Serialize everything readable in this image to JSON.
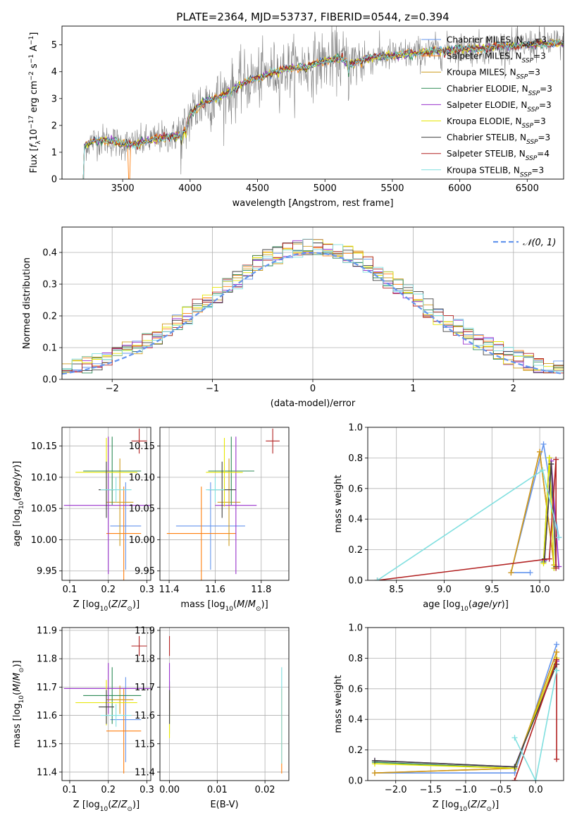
{
  "figure": {
    "title": "PLATE=2364, MJD=53737, FIBERID=0544, z=0.394"
  },
  "colors": {
    "chabrier_miles": "#6495ed",
    "salpeter_miles": "#ff7f0e",
    "kroupa_miles": "#cd9b1d",
    "chabrier_elodie": "#2e8b57",
    "salpeter_elodie": "#9932cc",
    "kroupa_elodie": "#e6e600",
    "chabrier_stelib": "#404040",
    "salpeter_stelib": "#b22222",
    "kroupa_stelib": "#7fdfdf",
    "normal_curve": "#6495ed"
  },
  "chart_data": [
    {
      "id": "spectrum",
      "type": "line",
      "xlabel": "wavelength [Angstrom, rest frame]",
      "ylabel": "Flux [f_λ10^-17 erg cm^-2 s^-1 A^-1]",
      "xlim": [
        3050,
        6770
      ],
      "ylim": [
        0,
        5.7
      ],
      "xticks": [
        "3500",
        "4000",
        "4500",
        "5000",
        "5500",
        "6000",
        "6500"
      ],
      "yticks": [
        "0",
        "1",
        "2",
        "3",
        "4",
        "5"
      ],
      "grid": false,
      "legend_position": "top-right",
      "legend": [
        {
          "label": "Chabrier MILES, N_SSP=3",
          "base": "Chabrier MILES, N",
          "sub": "SSP",
          "tail": "=3",
          "color": "#6495ed"
        },
        {
          "label": "Salpeter MILES, N_SSP=3",
          "base": "Salpeter MILES, N",
          "sub": "SSP",
          "tail": "=3",
          "color": "#ff7f0e"
        },
        {
          "label": "Kroupa MILES, N_SSP=3",
          "base": "Kroupa MILES, N",
          "sub": "SSP",
          "tail": "=3",
          "color": "#cd9b1d"
        },
        {
          "label": "Chabrier ELODIE, N_SSP=3",
          "base": "Chabrier ELODIE, N",
          "sub": "SSP",
          "tail": "=3",
          "color": "#2e8b57"
        },
        {
          "label": "Salpeter ELODIE, N_SSP=3",
          "base": "Salpeter ELODIE, N",
          "sub": "SSP",
          "tail": "=3",
          "color": "#9932cc"
        },
        {
          "label": "Kroupa ELODIE, N_SSP=3",
          "base": "Kroupa ELODIE, N",
          "sub": "SSP",
          "tail": "=3",
          "color": "#e6e600"
        },
        {
          "label": "Chabrier STELIB, N_SSP=3",
          "base": "Chabrier STELIB, N",
          "sub": "SSP",
          "tail": "=3",
          "color": "#404040"
        },
        {
          "label": "Salpeter STELIB, N_SSP=4",
          "base": "Salpeter STELIB, N",
          "sub": "SSP",
          "tail": "=4",
          "color": "#b22222"
        },
        {
          "label": "Kroupa STELIB, N_SSP=3",
          "base": "Kroupa STELIB, N",
          "sub": "SSP",
          "tail": "=3",
          "color": "#7fdfdf"
        }
      ],
      "continuum": {
        "x": [
          3200,
          3230,
          3300,
          3400,
          3500,
          3600,
          3700,
          3800,
          3900,
          3950,
          4000,
          4100,
          4200,
          4300,
          4400,
          4500,
          4600,
          4700,
          4800,
          4900,
          5000,
          5100,
          5200,
          5300,
          5400,
          5500,
          5600,
          5700,
          5800,
          5900,
          6000,
          6100,
          6200,
          6300,
          6400,
          6500,
          6600,
          6700
        ],
        "y": [
          1.1,
          1.3,
          1.45,
          1.45,
          1.3,
          1.3,
          1.45,
          1.55,
          1.6,
          1.7,
          2.4,
          2.9,
          3.0,
          3.3,
          3.6,
          3.75,
          3.95,
          4.1,
          4.15,
          4.25,
          4.4,
          4.5,
          4.3,
          4.5,
          4.55,
          4.6,
          4.65,
          4.7,
          4.75,
          4.8,
          4.85,
          4.85,
          4.9,
          4.95,
          4.95,
          5.0,
          5.05,
          5.05
        ]
      }
    },
    {
      "id": "residual_histogram",
      "type": "histogram",
      "xlabel": "(data-model)/error",
      "ylabel": "Normed distribution",
      "xlim": [
        -2.5,
        2.5
      ],
      "ylim": [
        0,
        0.48
      ],
      "xticks": [
        "−2",
        "−1",
        "0",
        "1",
        "2"
      ],
      "yticks": [
        "0.0",
        "0.1",
        "0.2",
        "0.3",
        "0.4"
      ],
      "grid": true,
      "bin_width": 0.1,
      "legend_position": "top-right",
      "reference_curve": {
        "label": "𝒩(0, 1)",
        "mean": 0,
        "sigma": 1
      }
    },
    {
      "id": "age_vs_Z",
      "type": "errorbar",
      "xlabel": "Z [log10(Z/Z⊙)]",
      "ylabel": "age [log10(age/yr)]",
      "xlim": [
        0.08,
        0.31
      ],
      "ylim": [
        9.935,
        10.18
      ],
      "xticks": [
        "0.1",
        "0.2",
        "0.3"
      ],
      "yticks": [
        "9.95",
        "10.00",
        "10.05",
        "10.10",
        "10.15"
      ],
      "grid": true,
      "points": [
        {
          "model": "Chabrier MILES",
          "x": 0.245,
          "xerr": 0.04,
          "y": 10.022,
          "yerr": 0.07
        },
        {
          "model": "Salpeter MILES",
          "x": 0.24,
          "xerr": 0.045,
          "y": 10.01,
          "yerr": 0.075
        },
        {
          "model": "Kroupa MILES",
          "x": 0.23,
          "xerr": 0.035,
          "y": 10.06,
          "yerr": 0.07
        },
        {
          "model": "Chabrier ELODIE",
          "x": 0.21,
          "xerr": 0.075,
          "y": 10.11,
          "yerr": 0.055
        },
        {
          "model": "Salpeter ELODIE",
          "x": 0.2,
          "xerr": 0.115,
          "y": 10.055,
          "yerr": 0.11
        },
        {
          "model": "Kroupa ELODIE",
          "x": 0.195,
          "xerr": 0.08,
          "y": 10.108,
          "yerr": 0.055
        },
        {
          "model": "Chabrier STELIB",
          "x": 0.195,
          "xerr": 0.02,
          "y": 10.08,
          "yerr": 0.045
        },
        {
          "model": "Salpeter STELIB",
          "x": 0.28,
          "xerr": 0.02,
          "y": 10.158,
          "yerr": 0.02
        },
        {
          "model": "Kroupa STELIB",
          "x": 0.22,
          "xerr": 0.04,
          "y": 10.08,
          "yerr": 0.02
        }
      ]
    },
    {
      "id": "age_vs_mass",
      "type": "errorbar",
      "xlabel": "mass [log10(M/M⊙)]",
      "ylabel": "",
      "xlim": [
        11.36,
        11.92
      ],
      "ylim": [
        9.935,
        10.18
      ],
      "xticks": [
        "11.4",
        "11.6",
        "11.8"
      ],
      "yticks": [
        "9.95",
        "10.00",
        "10.05",
        "10.10",
        "10.15"
      ],
      "grid": true,
      "points": [
        {
          "model": "Chabrier MILES",
          "x": 11.58,
          "xerr": 0.15,
          "y": 10.022,
          "yerr": 0.07
        },
        {
          "model": "Salpeter MILES",
          "x": 11.54,
          "xerr": 0.15,
          "y": 10.01,
          "yerr": 0.075
        },
        {
          "model": "Kroupa MILES",
          "x": 11.66,
          "xerr": 0.05,
          "y": 10.06,
          "yerr": 0.07
        },
        {
          "model": "Chabrier ELODIE",
          "x": 11.67,
          "xerr": 0.1,
          "y": 10.11,
          "yerr": 0.055
        },
        {
          "model": "Salpeter ELODIE",
          "x": 11.69,
          "xerr": 0.09,
          "y": 10.055,
          "yerr": 0.11
        },
        {
          "model": "Kroupa ELODIE",
          "x": 11.64,
          "xerr": 0.08,
          "y": 10.108,
          "yerr": 0.055
        },
        {
          "model": "Chabrier STELIB",
          "x": 11.63,
          "xerr": 0.06,
          "y": 10.08,
          "yerr": 0.045
        },
        {
          "model": "Salpeter STELIB",
          "x": 11.85,
          "xerr": 0.03,
          "y": 10.158,
          "yerr": 0.02
        },
        {
          "model": "Kroupa STELIB",
          "x": 11.6,
          "xerr": 0.04,
          "y": 10.08,
          "yerr": 0.02
        }
      ]
    },
    {
      "id": "mass_weight_vs_age",
      "type": "line",
      "xlabel": "age  [log10(age/yr)]",
      "ylabel": "mass weight",
      "xlim": [
        8.2,
        10.25
      ],
      "ylim": [
        0,
        1
      ],
      "xticks": [
        "8.5",
        "9.0",
        "9.5",
        "10.0"
      ],
      "yticks": [
        "0.0",
        "0.2",
        "0.4",
        "0.6",
        "0.8",
        "1.0"
      ],
      "grid": true,
      "series": [
        {
          "model": "Chabrier MILES",
          "x": [
            9.9,
            9.7,
            10.04,
            10.2
          ],
          "y": [
            0.05,
            0.05,
            0.89,
            0.28
          ]
        },
        {
          "model": "Salpeter MILES",
          "x": [
            9.7,
            10.0,
            10.15
          ],
          "y": [
            0.05,
            0.84,
            0.1
          ]
        },
        {
          "model": "Kroupa MILES",
          "x": [
            9.7,
            10.0,
            10.15
          ],
          "y": [
            0.05,
            0.84,
            0.1
          ]
        },
        {
          "model": "Chabrier ELODIE",
          "x": [
            10.04,
            10.1,
            10.15
          ],
          "y": [
            0.12,
            0.8,
            0.08
          ]
        },
        {
          "model": "Salpeter ELODIE",
          "x": [
            10.05,
            10.12,
            10.2
          ],
          "y": [
            0.13,
            0.78,
            0.09
          ]
        },
        {
          "model": "Kroupa ELODIE",
          "x": [
            10.04,
            10.1,
            10.15
          ],
          "y": [
            0.11,
            0.8,
            0.08
          ]
        },
        {
          "model": "Chabrier STELIB",
          "x": [
            10.05,
            10.12,
            10.17
          ],
          "y": [
            0.14,
            0.76,
            0.09
          ]
        },
        {
          "model": "Salpeter STELIB",
          "x": [
            8.3,
            10.1,
            10.17,
            10.17
          ],
          "y": [
            0.0,
            0.14,
            0.79,
            0.08
          ]
        },
        {
          "model": "Kroupa STELIB",
          "x": [
            8.3,
            10.03,
            10.2
          ],
          "y": [
            0.0,
            0.72,
            0.28
          ]
        }
      ]
    },
    {
      "id": "mass_vs_Z",
      "type": "errorbar",
      "xlabel": "Z [log10(Z/Z⊙)]",
      "ylabel": "mass [log10(M/M⊙)]",
      "xlim": [
        0.08,
        0.31
      ],
      "ylim": [
        11.37,
        11.91
      ],
      "xticks": [
        "0.1",
        "0.2",
        "0.3"
      ],
      "yticks": [
        "11.4",
        "11.5",
        "11.6",
        "11.7",
        "11.8",
        "11.9"
      ],
      "grid": true,
      "points": [
        {
          "model": "Chabrier MILES",
          "x": 0.245,
          "xerr": 0.04,
          "y": 11.585,
          "yerr": 0.15
        },
        {
          "model": "Salpeter MILES",
          "x": 0.24,
          "xerr": 0.045,
          "y": 11.545,
          "yerr": 0.15
        },
        {
          "model": "Kroupa MILES",
          "x": 0.23,
          "xerr": 0.035,
          "y": 11.655,
          "yerr": 0.05
        },
        {
          "model": "Chabrier ELODIE",
          "x": 0.21,
          "xerr": 0.075,
          "y": 11.67,
          "yerr": 0.1
        },
        {
          "model": "Salpeter ELODIE",
          "x": 0.2,
          "xerr": 0.115,
          "y": 11.695,
          "yerr": 0.09
        },
        {
          "model": "Kroupa ELODIE",
          "x": 0.195,
          "xerr": 0.08,
          "y": 11.645,
          "yerr": 0.08
        },
        {
          "model": "Chabrier STELIB",
          "x": 0.195,
          "xerr": 0.02,
          "y": 11.63,
          "yerr": 0.06
        },
        {
          "model": "Salpeter STELIB",
          "x": 0.28,
          "xerr": 0.02,
          "y": 11.845,
          "yerr": 0.035
        },
        {
          "model": "Kroupa STELIB",
          "x": 0.22,
          "xerr": 0.04,
          "y": 11.6,
          "yerr": 0.04
        }
      ]
    },
    {
      "id": "mass_vs_ebv",
      "type": "errorbar",
      "xlabel": "E(B-V)",
      "ylabel": "",
      "xlim": [
        -0.002,
        0.025
      ],
      "ylim": [
        11.37,
        11.91
      ],
      "xticks": [
        "0.00",
        "0.01",
        "0.02"
      ],
      "yticks": [
        "11.4",
        "11.5",
        "11.6",
        "11.7",
        "11.8",
        "11.9"
      ],
      "grid": true,
      "points": [
        {
          "model": "Chabrier MILES",
          "x": 0.0,
          "xerr": 0,
          "y": 11.585,
          "yerr": 0.05
        },
        {
          "model": "Salpeter MILES",
          "x": 0.0235,
          "xerr": 0,
          "y": 11.545,
          "yerr": 0.15
        },
        {
          "model": "Kroupa MILES",
          "x": 0.0,
          "xerr": 0,
          "y": 11.655,
          "yerr": 0.05
        },
        {
          "model": "Chabrier ELODIE",
          "x": 0.0,
          "xerr": 0,
          "y": 11.67,
          "yerr": 0.05
        },
        {
          "model": "Salpeter ELODIE",
          "x": 0.0,
          "xerr": 0,
          "y": 11.695,
          "yerr": 0.09
        },
        {
          "model": "Kroupa ELODIE",
          "x": 0.0,
          "xerr": 0,
          "y": 11.6,
          "yerr": 0.08
        },
        {
          "model": "Chabrier STELIB",
          "x": 0.0,
          "xerr": 0,
          "y": 11.63,
          "yerr": 0.06
        },
        {
          "model": "Salpeter STELIB",
          "x": 0.0,
          "xerr": 0,
          "y": 11.845,
          "yerr": 0.035
        },
        {
          "model": "Kroupa STELIB",
          "x": 0.0235,
          "xerr": 0,
          "y": 11.6,
          "yerr": 0.17
        }
      ]
    },
    {
      "id": "mass_weight_vs_Z",
      "type": "line",
      "xlabel": "Z [log10(Z/Z⊙)]",
      "ylabel": "mass weight",
      "xlim": [
        -2.4,
        0.4
      ],
      "ylim": [
        0,
        1
      ],
      "xticks": [
        "−2.0",
        "−1.5",
        "−1.0",
        "−0.5",
        "0.0"
      ],
      "yticks": [
        "0.0",
        "0.2",
        "0.4",
        "0.6",
        "0.8",
        "1.0"
      ],
      "grid": true,
      "series": [
        {
          "model": "Chabrier MILES",
          "x": [
            -2.3,
            -0.3,
            0.3
          ],
          "y": [
            0.05,
            0.05,
            0.89
          ]
        },
        {
          "model": "Salpeter MILES",
          "x": [
            -2.3,
            -0.3,
            0.3
          ],
          "y": [
            0.05,
            0.08,
            0.84
          ]
        },
        {
          "model": "Kroupa MILES",
          "x": [
            -2.3,
            -0.3,
            0.3
          ],
          "y": [
            0.05,
            0.08,
            0.84
          ]
        },
        {
          "model": "Chabrier ELODIE",
          "x": [
            -2.3,
            -0.3,
            0.3
          ],
          "y": [
            0.12,
            0.08,
            0.8
          ]
        },
        {
          "model": "Salpeter ELODIE",
          "x": [
            -2.3,
            -0.3,
            0.3
          ],
          "y": [
            0.13,
            0.09,
            0.78
          ]
        },
        {
          "model": "Kroupa ELODIE",
          "x": [
            -2.3,
            -0.3,
            0.3
          ],
          "y": [
            0.11,
            0.08,
            0.8
          ]
        },
        {
          "model": "Chabrier STELIB",
          "x": [
            -2.3,
            -0.3,
            0.3
          ],
          "y": [
            0.13,
            0.09,
            0.76
          ]
        },
        {
          "model": "Salpeter STELIB",
          "x": [
            -0.3,
            -0.3,
            0.3,
            0.3
          ],
          "y": [
            0.0,
            0.0,
            0.79,
            0.14
          ]
        },
        {
          "model": "Kroupa STELIB",
          "x": [
            -0.3,
            0.0,
            0.3,
            0.3
          ],
          "y": [
            0.28,
            0.0,
            0.72,
            0.72
          ]
        }
      ]
    }
  ]
}
